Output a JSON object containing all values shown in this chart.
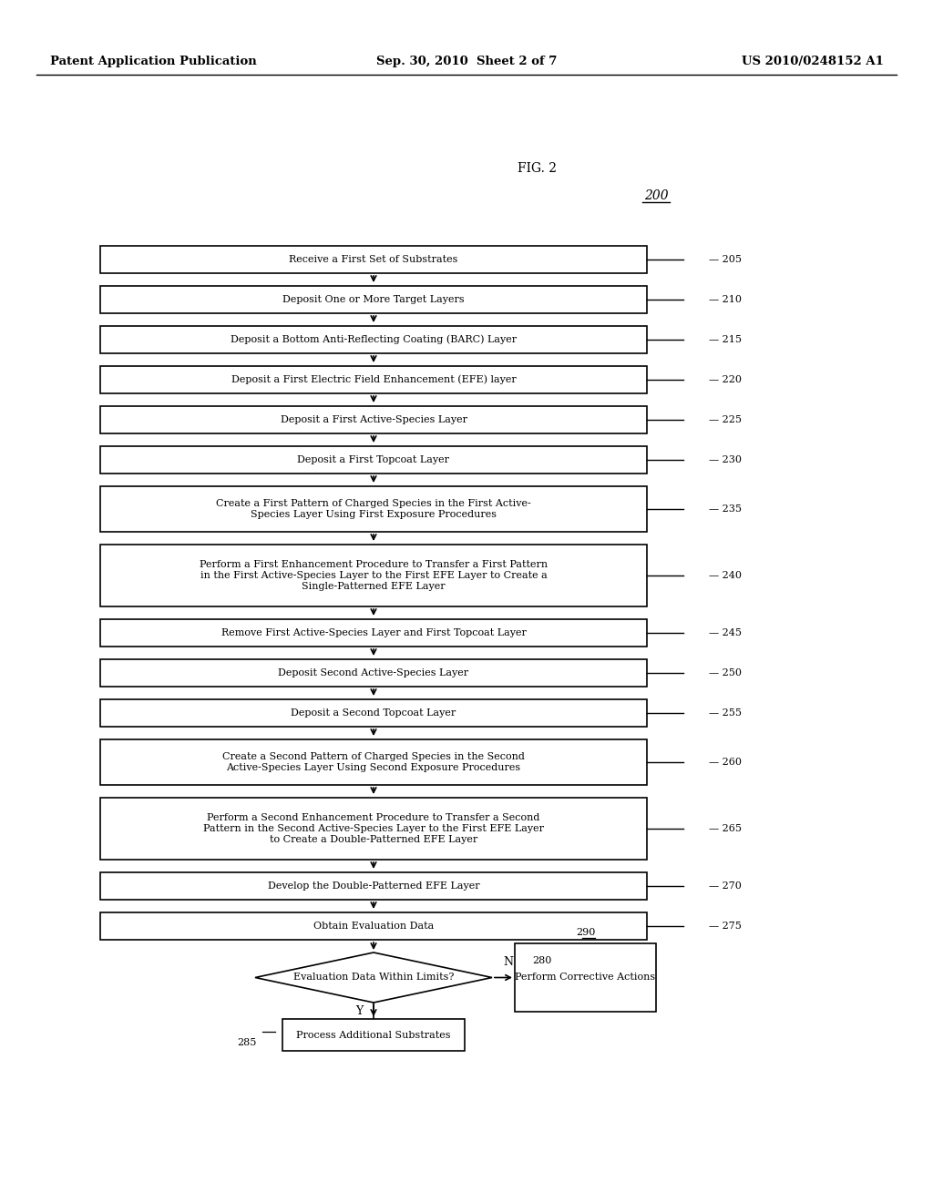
{
  "header_left": "Patent Application Publication",
  "header_center": "Sep. 30, 2010  Sheet 2 of 7",
  "header_right": "US 2010/0248152 A1",
  "fig_label": "FIG. 2",
  "fig_number": "200",
  "background_color": "#ffffff",
  "boxes": [
    {
      "id": 205,
      "label": "Receive a First Set of Substrates",
      "lines": 1
    },
    {
      "id": 210,
      "label": "Deposit One or More Target Layers",
      "lines": 1
    },
    {
      "id": 215,
      "label": "Deposit a Bottom Anti-Reflecting Coating (BARC) Layer",
      "lines": 1
    },
    {
      "id": 220,
      "label": "Deposit a First Electric Field Enhancement (EFE) layer",
      "lines": 1
    },
    {
      "id": 225,
      "label": "Deposit a First Active-Species Layer",
      "lines": 1
    },
    {
      "id": 230,
      "label": "Deposit a First Topcoat Layer",
      "lines": 1
    },
    {
      "id": 235,
      "label": "Create a First Pattern of Charged Species in the First Active-\nSpecies Layer Using First Exposure Procedures",
      "lines": 2
    },
    {
      "id": 240,
      "label": "Perform a First Enhancement Procedure to Transfer a First Pattern\nin the First Active-Species Layer to the First EFE Layer to Create a\nSingle-Patterned EFE Layer",
      "lines": 3
    },
    {
      "id": 245,
      "label": "Remove First Active-Species Layer and First Topcoat Layer",
      "lines": 1
    },
    {
      "id": 250,
      "label": "Deposit Second Active-Species Layer",
      "lines": 1
    },
    {
      "id": 255,
      "label": "Deposit a Second Topcoat Layer",
      "lines": 1
    },
    {
      "id": 260,
      "label": "Create a Second Pattern of Charged Species in the Second\nActive-Species Layer Using Second Exposure Procedures",
      "lines": 2
    },
    {
      "id": 265,
      "label": "Perform a Second Enhancement Procedure to Transfer a Second\nPattern in the Second Active-Species Layer to the First EFE Layer\nto Create a Double-Patterned EFE Layer",
      "lines": 3
    },
    {
      "id": 270,
      "label": "Develop the Double-Patterned EFE Layer",
      "lines": 1
    },
    {
      "id": 275,
      "label": "Obtain Evaluation Data",
      "lines": 1
    }
  ],
  "decision_box": {
    "id": 280,
    "label": "Evaluation Data Within Limits?"
  },
  "yes_label": "Y",
  "no_label": "N",
  "yes_box": {
    "id": 285,
    "label": "Process Additional Substrates"
  },
  "no_box": {
    "id": 290,
    "label": "Perform Corrective Actions"
  }
}
